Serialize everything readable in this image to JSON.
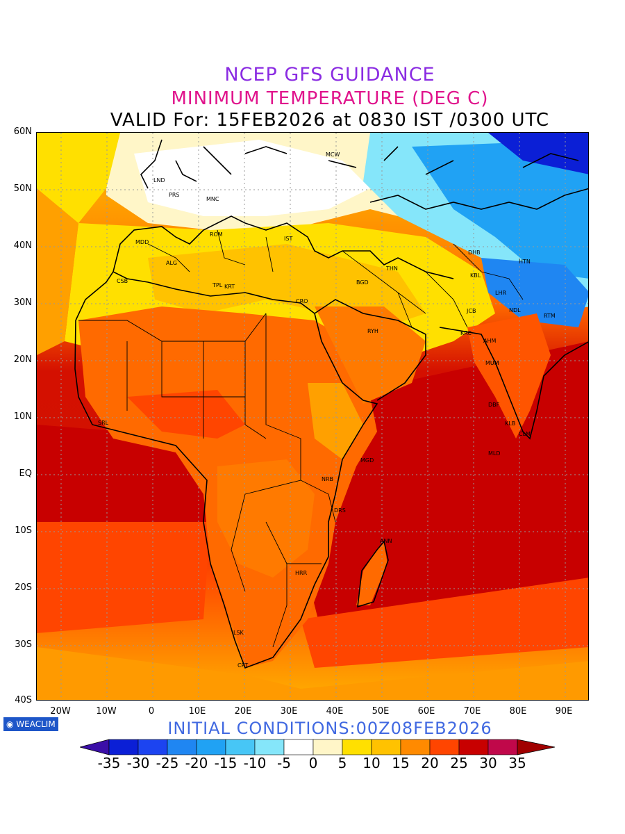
{
  "title": {
    "line1": "NCEP GFS GUIDANCE",
    "line2": "MINIMUM TEMPERATURE (DEG C)",
    "line3": "VALID For: 15FEB2026 at 0830 IST /0300 UTC"
  },
  "axes": {
    "lat_labels": [
      "60N",
      "50N",
      "40N",
      "30N",
      "20N",
      "10N",
      "EQ",
      "10S",
      "20S",
      "30S",
      "40S"
    ],
    "lon_labels": [
      "20W",
      "10W",
      "0",
      "10E",
      "20E",
      "30E",
      "40E",
      "50E",
      "60E",
      "70E",
      "80E",
      "90E"
    ]
  },
  "map": {
    "region": {
      "lat_range": [
        -40,
        60
      ],
      "lon_range": [
        -25,
        95
      ]
    },
    "city_labels": [
      "MCW",
      "LND",
      "PRS",
      "MNC",
      "ROM",
      "MDD",
      "IST",
      "ALG",
      "CSB",
      "TPL",
      "KRT",
      "CRO",
      "BGD",
      "THN",
      "DHB",
      "HTN",
      "KBL",
      "LHR",
      "JCB",
      "NDL",
      "RYH",
      "KRC",
      "AHM",
      "RTM",
      "MUM",
      "DBF",
      "KLB",
      "CLM",
      "MLD",
      "SRL",
      "MGD",
      "NRB",
      "DRS",
      "ANN",
      "HRR",
      "LSK",
      "CPT"
    ]
  },
  "colors": {
    "title1": "#8a2be2",
    "title2": "#e0148c",
    "init": "#4169e1"
  },
  "colorbar": {
    "ticks": [
      "-35",
      "-30",
      "-25",
      "-20",
      "-15",
      "-10",
      "-5",
      "0",
      "5",
      "10",
      "15",
      "20",
      "25",
      "30",
      "35"
    ],
    "colors": [
      "#3b0fa8",
      "#0b1fd6",
      "#1c44f0",
      "#1f86f2",
      "#20a2f4",
      "#47c6f6",
      "#85e6fa",
      "#ffffff",
      "#fff6c8",
      "#ffe000",
      "#ffc200",
      "#ff8a00",
      "#ff4500",
      "#c80000",
      "#c0084a",
      "#a00000"
    ]
  },
  "footer": {
    "badge": "WEACLIM",
    "init": "INITIAL CONDITIONS:00Z08FEB2026"
  }
}
